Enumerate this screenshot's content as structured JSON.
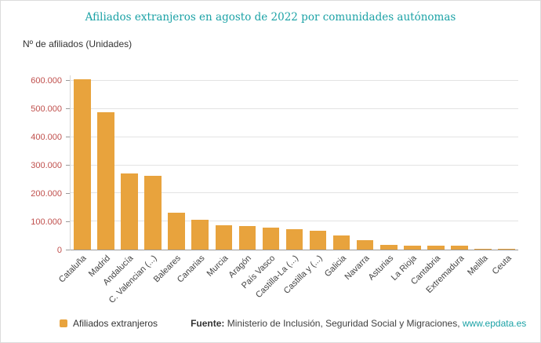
{
  "chart_data": {
    "type": "bar",
    "title": "Afiliados extranjeros en agosto de 2022 por comunidades autónomas",
    "ylabel": "Nº de afiliados (Unidades)",
    "xlabel": "",
    "categories": [
      "Cataluña",
      "Madrid",
      "Andalucía",
      "C. Valencian (...)",
      "Baleares",
      "Canarias",
      "Murcia",
      "Aragón",
      "País Vasco",
      "Castilla-La (...)",
      "Castilla y (...)",
      "Galicia",
      "Navarra",
      "Asturias",
      "La Rioja",
      "Cantabria",
      "Extremadura",
      "Melilla",
      "Ceuta"
    ],
    "values": [
      605000,
      490000,
      270000,
      263000,
      131000,
      107000,
      88000,
      85000,
      77000,
      72000,
      68000,
      51000,
      33000,
      17000,
      15000,
      13000,
      15000,
      2500,
      1500
    ],
    "series_name": "Afiliados extranjeros",
    "ylim": [
      0,
      620000
    ],
    "yticks": [
      0,
      100000,
      200000,
      300000,
      400000,
      500000,
      600000
    ],
    "grid": true,
    "legend_position": "bottom-left",
    "bar_color": "#E8A33D"
  },
  "legend": {
    "label": "Afiliados extranjeros",
    "swatch_color": "#E8A33D"
  },
  "footer": {
    "source_label": "Fuente:",
    "source_text": " Ministerio de Inclusión, Seguridad Social y Migraciones, ",
    "source_link": "www.epdata.es"
  },
  "colors": {
    "title": "#1BA2A6",
    "bar": "#E8A33D",
    "y_tick_label": "#C0504D",
    "link": "#1BA2A6"
  }
}
